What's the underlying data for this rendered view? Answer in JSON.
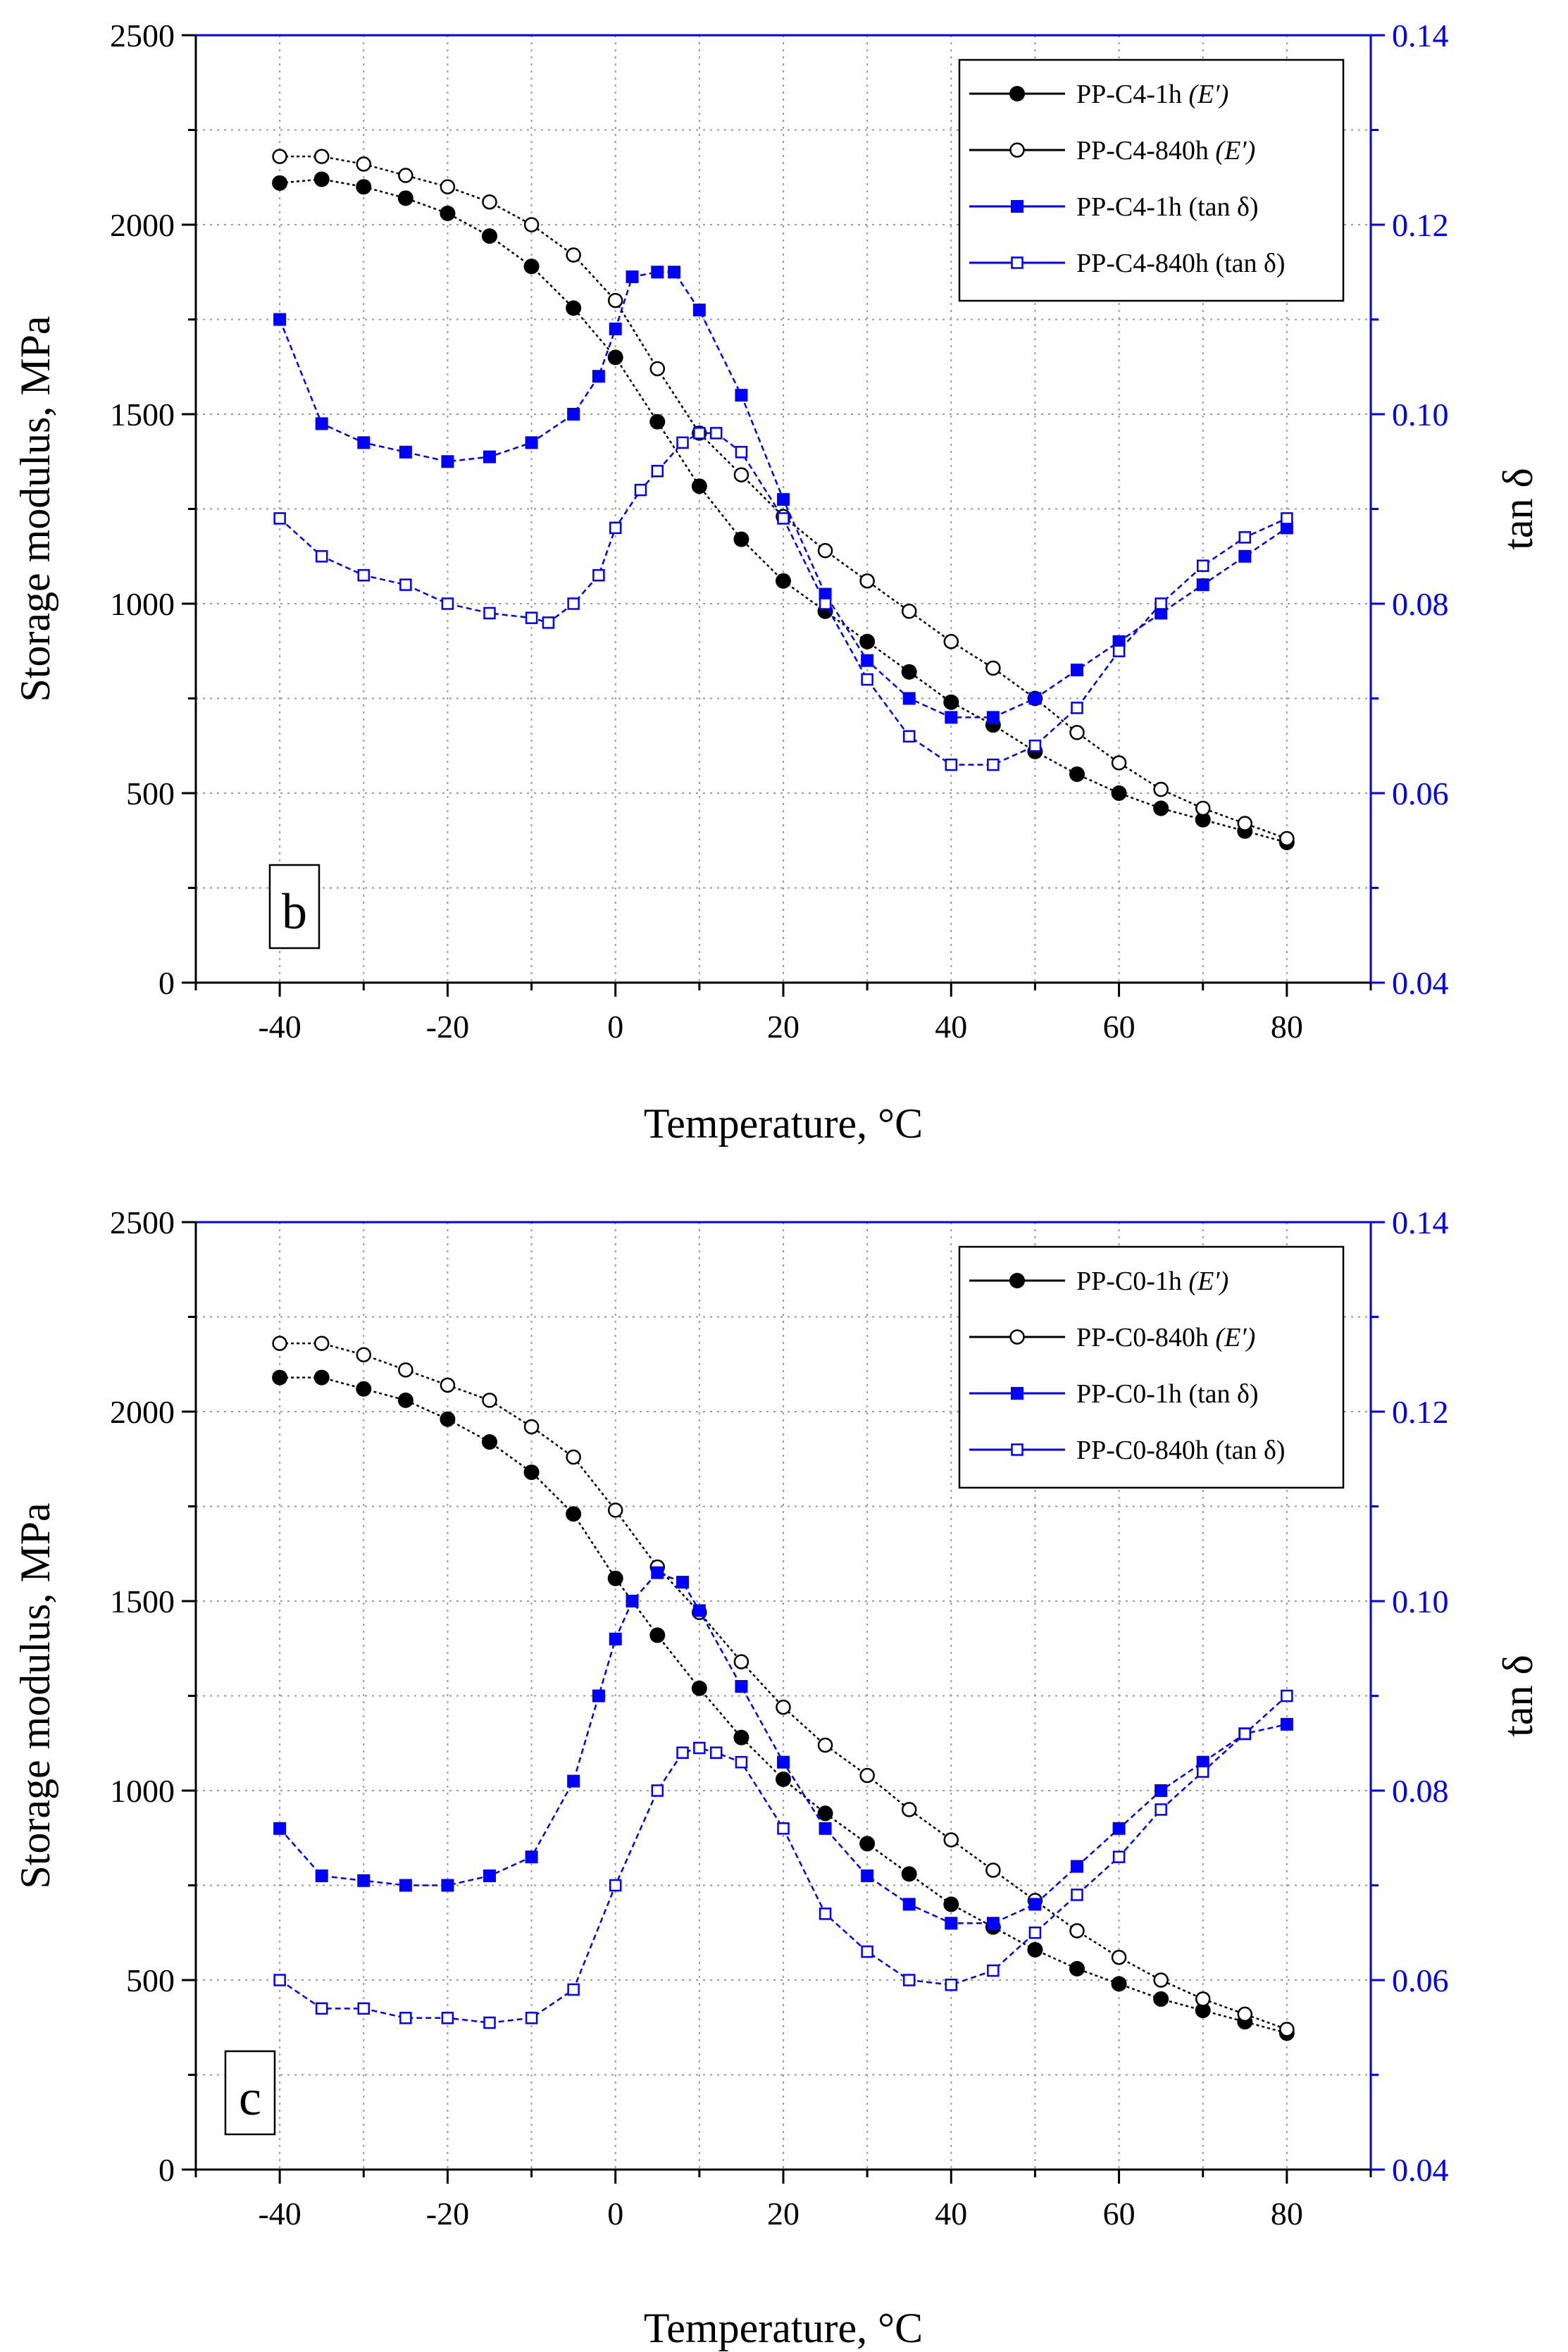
{
  "chart_data": [
    {
      "type": "line",
      "panel_label": "b",
      "xlabel": "Temperature, °C",
      "ylabel": "Storage modulus, MPa",
      "y2label": "tan δ",
      "xlim": [
        -50,
        90
      ],
      "ylim": [
        0,
        2500
      ],
      "y2lim": [
        0.04,
        0.14
      ],
      "xticks": [
        "-40",
        "-20",
        "0",
        "20",
        "40",
        "60",
        "80"
      ],
      "yticks": [
        "0",
        "500",
        "1000",
        "1500",
        "2000",
        "2500"
      ],
      "y2ticks": [
        "0.04",
        "0.06",
        "0.08",
        "0.10",
        "0.12",
        "0.14"
      ],
      "grid": true,
      "legend_position": "top-right",
      "series": [
        {
          "name": "PP-C4-1h",
          "suffix": "(E′)",
          "axis": "left",
          "color": "#000000",
          "marker": "filled-circle",
          "x": [
            -40,
            -35,
            -30,
            -25,
            -20,
            -15,
            -10,
            -5,
            0,
            5,
            10,
            15,
            20,
            25,
            30,
            35,
            40,
            45,
            50,
            55,
            60,
            65,
            70,
            75,
            80
          ],
          "y": [
            2110,
            2120,
            2100,
            2070,
            2030,
            1970,
            1890,
            1780,
            1650,
            1480,
            1310,
            1170,
            1060,
            980,
            900,
            820,
            740,
            680,
            610,
            550,
            500,
            460,
            430,
            400,
            370
          ]
        },
        {
          "name": "PP-C4-840h",
          "suffix": "(E′)",
          "axis": "left",
          "color": "#000000",
          "marker": "open-circle",
          "x": [
            -40,
            -35,
            -30,
            -25,
            -20,
            -15,
            -10,
            -5,
            0,
            5,
            10,
            15,
            20,
            25,
            30,
            35,
            40,
            45,
            50,
            55,
            60,
            65,
            70,
            75,
            80
          ],
          "y": [
            2180,
            2180,
            2160,
            2130,
            2100,
            2060,
            2000,
            1920,
            1800,
            1620,
            1450,
            1340,
            1230,
            1140,
            1060,
            980,
            900,
            830,
            750,
            660,
            580,
            510,
            460,
            420,
            380
          ]
        },
        {
          "name": "PP-C4-1h",
          "suffix": "(tan δ)",
          "axis": "right",
          "color": "#0000ff",
          "marker": "filled-square",
          "x": [
            -40,
            -35,
            -30,
            -25,
            -20,
            -15,
            -10,
            -5,
            -2,
            0,
            2,
            5,
            7,
            10,
            15,
            20,
            25,
            30,
            35,
            40,
            45,
            50,
            55,
            60,
            65,
            70,
            75,
            80
          ],
          "y": [
            0.11,
            0.099,
            0.097,
            0.096,
            0.095,
            0.0955,
            0.097,
            0.1,
            0.104,
            0.109,
            0.1145,
            0.115,
            0.115,
            0.111,
            0.102,
            0.091,
            0.081,
            0.074,
            0.07,
            0.068,
            0.068,
            0.07,
            0.073,
            0.076,
            0.079,
            0.082,
            0.085,
            0.088
          ]
        },
        {
          "name": "PP-C4-840h",
          "suffix": "(tan δ)",
          "axis": "right",
          "color": "#0000ff",
          "marker": "open-square",
          "x": [
            -40,
            -35,
            -30,
            -25,
            -20,
            -15,
            -10,
            -8,
            -5,
            -2,
            0,
            3,
            5,
            8,
            10,
            12,
            15,
            20,
            25,
            30,
            35,
            40,
            45,
            50,
            55,
            60,
            65,
            70,
            75,
            80
          ],
          "y": [
            0.089,
            0.085,
            0.083,
            0.082,
            0.08,
            0.079,
            0.0785,
            0.078,
            0.08,
            0.083,
            0.088,
            0.092,
            0.094,
            0.097,
            0.098,
            0.098,
            0.096,
            0.089,
            0.08,
            0.072,
            0.066,
            0.063,
            0.063,
            0.065,
            0.069,
            0.075,
            0.08,
            0.084,
            0.087,
            0.089
          ]
        }
      ]
    },
    {
      "type": "line",
      "panel_label": "c",
      "xlabel": "Temperature, °C",
      "ylabel": "Storage modulus, MPa",
      "y2label": "tan δ",
      "xlim": [
        -50,
        90
      ],
      "ylim": [
        0,
        2500
      ],
      "y2lim": [
        0.04,
        0.14
      ],
      "xticks": [
        "-40",
        "-20",
        "0",
        "20",
        "40",
        "60",
        "80"
      ],
      "yticks": [
        "0",
        "500",
        "1000",
        "1500",
        "2000",
        "2500"
      ],
      "y2ticks": [
        "0.04",
        "0.06",
        "0.08",
        "0.10",
        "0.12",
        "0.14"
      ],
      "grid": true,
      "legend_position": "top-right",
      "series": [
        {
          "name": "PP-C0-1h",
          "suffix": "(E′)",
          "axis": "left",
          "color": "#000000",
          "marker": "filled-circle",
          "x": [
            -40,
            -35,
            -30,
            -25,
            -20,
            -15,
            -10,
            -5,
            0,
            5,
            10,
            15,
            20,
            25,
            30,
            35,
            40,
            45,
            50,
            55,
            60,
            65,
            70,
            75,
            80
          ],
          "y": [
            2090,
            2090,
            2060,
            2030,
            1980,
            1920,
            1840,
            1730,
            1560,
            1410,
            1270,
            1140,
            1030,
            940,
            860,
            780,
            700,
            640,
            580,
            530,
            490,
            450,
            420,
            390,
            360
          ]
        },
        {
          "name": "PP-C0-840h",
          "suffix": "(E′)",
          "axis": "left",
          "color": "#000000",
          "marker": "open-circle",
          "x": [
            -40,
            -35,
            -30,
            -25,
            -20,
            -15,
            -10,
            -5,
            0,
            5,
            10,
            15,
            20,
            25,
            30,
            35,
            40,
            45,
            50,
            55,
            60,
            65,
            70,
            75,
            80
          ],
          "y": [
            2180,
            2180,
            2150,
            2110,
            2070,
            2030,
            1960,
            1880,
            1740,
            1590,
            1470,
            1340,
            1220,
            1120,
            1040,
            950,
            870,
            790,
            710,
            630,
            560,
            500,
            450,
            410,
            370
          ]
        },
        {
          "name": "PP-C0-1h",
          "suffix": "(tan δ)",
          "axis": "right",
          "color": "#0000ff",
          "marker": "filled-square",
          "x": [
            -40,
            -35,
            -30,
            -25,
            -20,
            -15,
            -10,
            -5,
            -2,
            0,
            2,
            5,
            8,
            10,
            15,
            20,
            25,
            30,
            35,
            40,
            45,
            50,
            55,
            60,
            65,
            70,
            75,
            80
          ],
          "y": [
            0.076,
            0.071,
            0.0705,
            0.07,
            0.07,
            0.071,
            0.073,
            0.081,
            0.09,
            0.096,
            0.1,
            0.103,
            0.102,
            0.099,
            0.091,
            0.083,
            0.076,
            0.071,
            0.068,
            0.066,
            0.066,
            0.068,
            0.072,
            0.076,
            0.08,
            0.083,
            0.086,
            0.087
          ]
        },
        {
          "name": "PP-C0-840h",
          "suffix": "(tan δ)",
          "axis": "right",
          "color": "#0000ff",
          "marker": "open-square",
          "x": [
            -40,
            -35,
            -30,
            -25,
            -20,
            -15,
            -10,
            -5,
            0,
            5,
            8,
            10,
            12,
            15,
            20,
            25,
            30,
            35,
            40,
            45,
            50,
            55,
            60,
            65,
            70,
            75,
            80
          ],
          "y": [
            0.06,
            0.057,
            0.057,
            0.056,
            0.056,
            0.0555,
            0.056,
            0.059,
            0.07,
            0.08,
            0.084,
            0.0845,
            0.084,
            0.083,
            0.076,
            0.067,
            0.063,
            0.06,
            0.0595,
            0.061,
            0.065,
            0.069,
            0.073,
            0.078,
            0.082,
            0.086,
            0.09
          ]
        }
      ]
    }
  ]
}
